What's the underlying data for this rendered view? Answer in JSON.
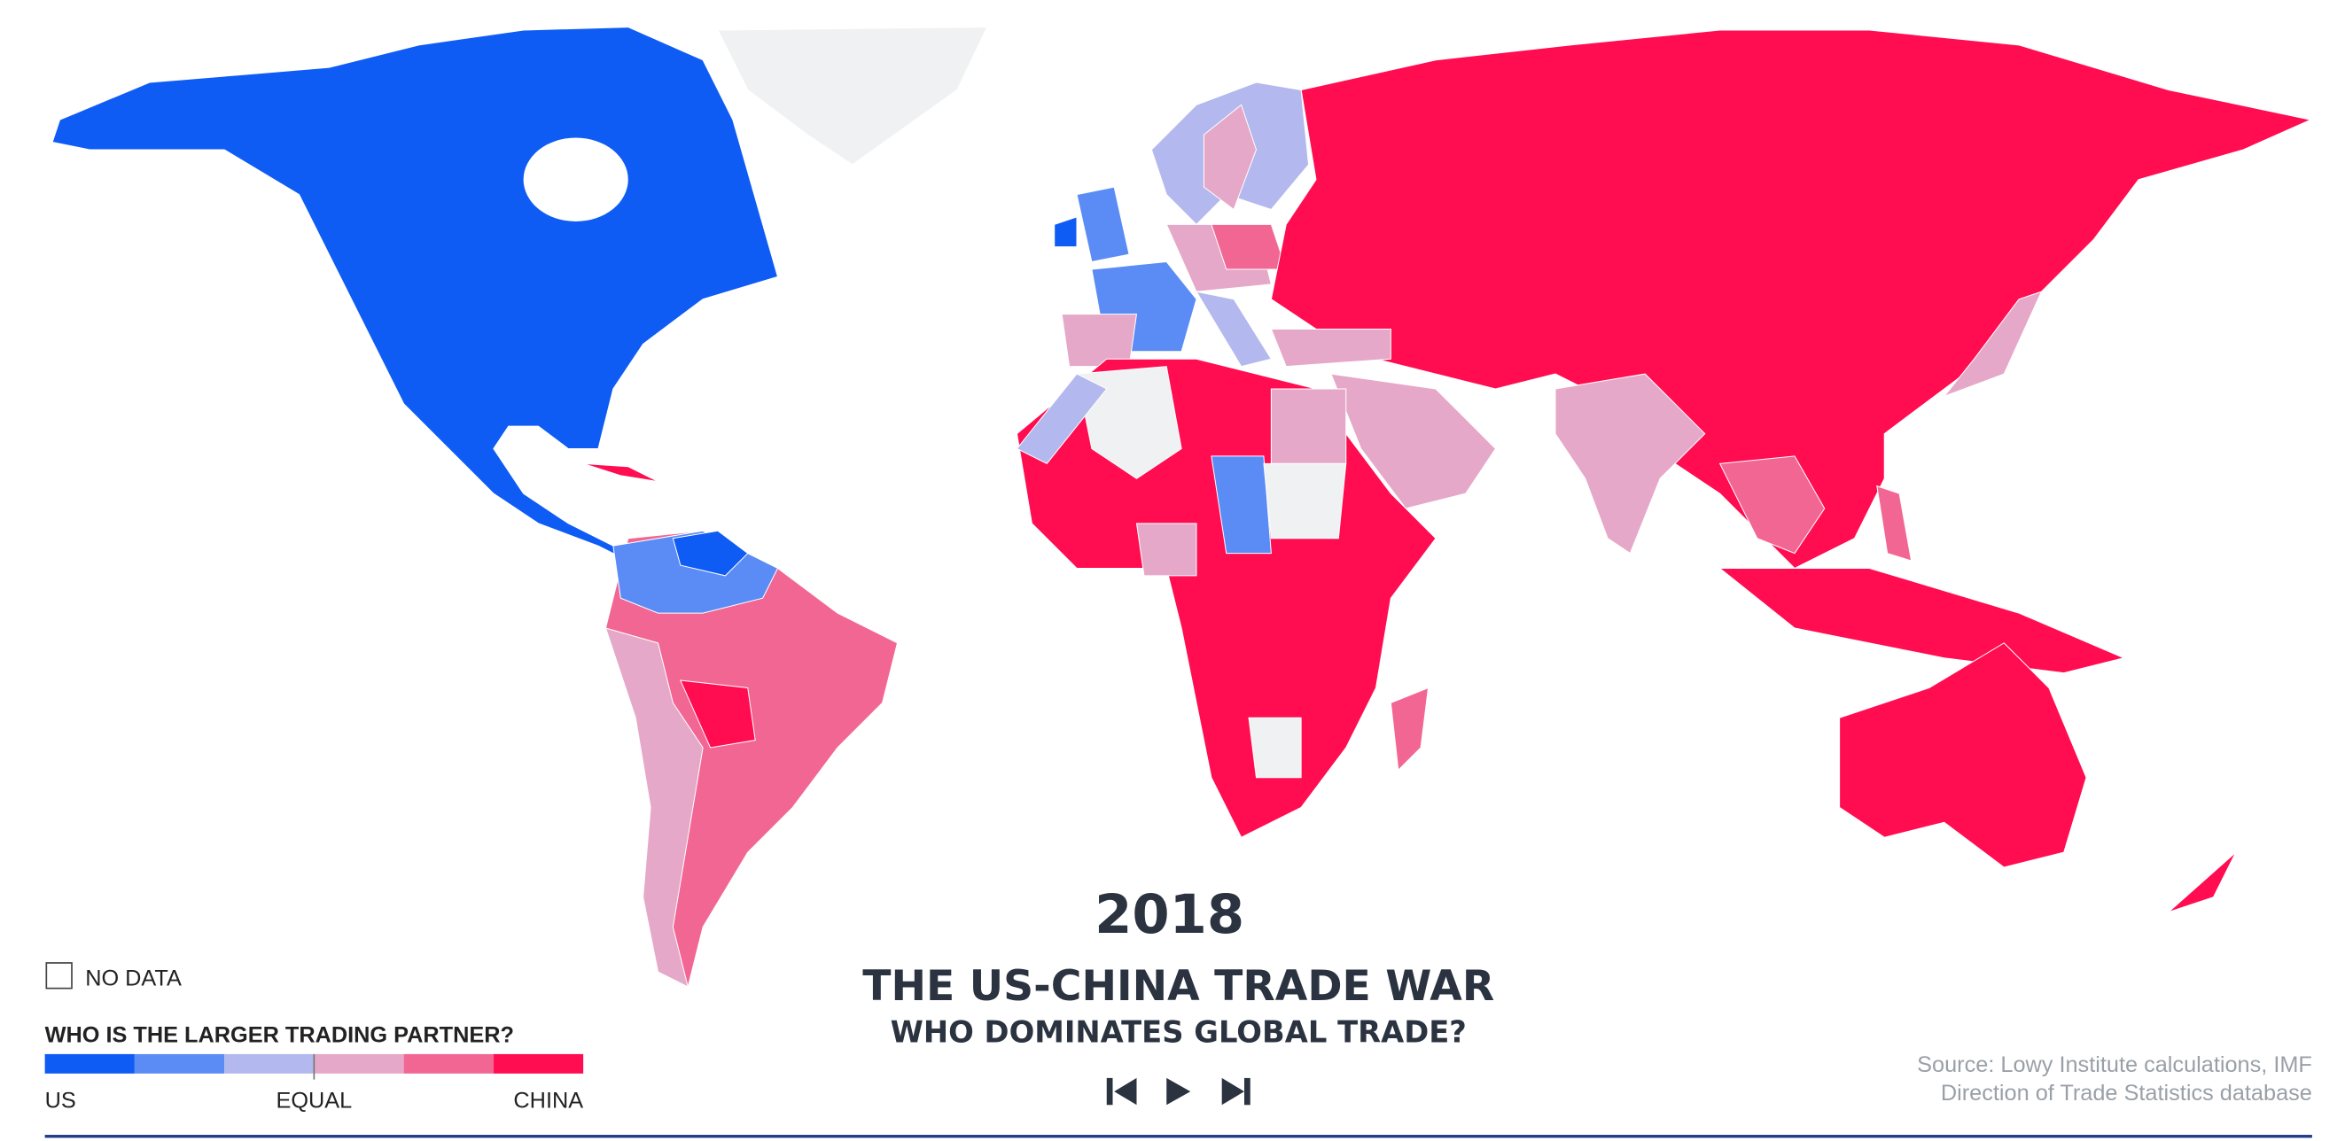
{
  "year": "2018",
  "title": "THE US-CHINA TRADE WAR",
  "subtitle": "WHO DOMINATES GLOBAL TRADE?",
  "legend": {
    "no_data": "NO DATA",
    "title": "WHO IS THE LARGER TRADING PARTNER?",
    "colors": [
      "#0f5cf5",
      "#5b8cf6",
      "#b3b8ee",
      "#e6a8c8",
      "#f26693",
      "#ff0d50"
    ],
    "labels": [
      "US",
      "EQUAL",
      "CHINA"
    ]
  },
  "source": [
    "Source: Lowy Institute calculations, IMF",
    "Direction of Trade Statistics database"
  ]
}
